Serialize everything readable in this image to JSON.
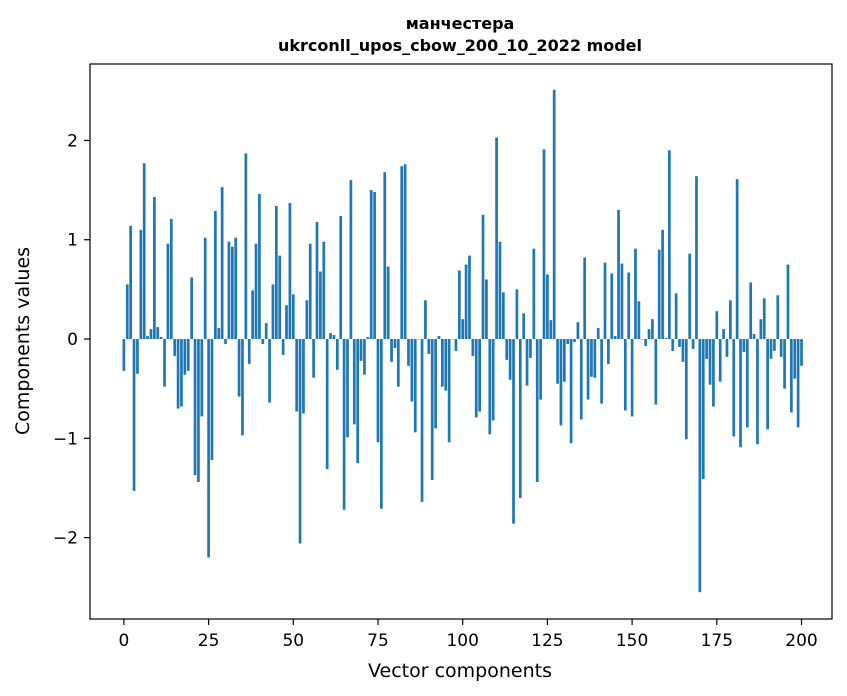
{
  "chart_data": {
    "type": "bar",
    "title": "манчестера",
    "subtitle": "ukrconll_upos_cbow_200_10_2022 model",
    "xlabel": "Vector components",
    "ylabel": "Components values",
    "xlim": [
      -10,
      209
    ],
    "ylim": [
      -2.82,
      2.77
    ],
    "xticks": [
      0,
      25,
      50,
      75,
      100,
      125,
      150,
      175,
      200
    ],
    "xtick_labels": [
      "0",
      "25",
      "50",
      "75",
      "100",
      "125",
      "150",
      "175",
      "200"
    ],
    "yticks": [
      -2,
      -1,
      0,
      1,
      2
    ],
    "ytick_labels": [
      "−2",
      "−1",
      "0",
      "1",
      "2"
    ],
    "bar_color": "#1f77b4",
    "grid": false,
    "legend": "none",
    "values": [
      -0.32,
      0.55,
      1.14,
      -1.53,
      -0.35,
      1.1,
      1.77,
      0.03,
      0.1,
      1.43,
      0.12,
      0.02,
      -0.48,
      0.96,
      1.21,
      -0.17,
      -0.7,
      -0.68,
      -0.36,
      -0.32,
      0.62,
      -1.37,
      -1.44,
      -0.78,
      1.02,
      -2.2,
      -1.22,
      1.29,
      0.11,
      1.53,
      -0.05,
      0.98,
      0.93,
      1.02,
      -0.58,
      -0.97,
      1.87,
      -0.25,
      0.49,
      0.96,
      1.46,
      -0.05,
      0.16,
      -0.64,
      0.55,
      1.34,
      0.84,
      -0.16,
      0.34,
      1.37,
      0.45,
      -0.73,
      -2.06,
      -0.75,
      0.39,
      0.96,
      -0.39,
      1.18,
      0.68,
      0.98,
      -1.31,
      0.06,
      0.04,
      -0.31,
      1.24,
      -1.72,
      -0.99,
      1.6,
      -0.86,
      -1.25,
      -0.22,
      -0.36,
      0.02,
      1.5,
      1.48,
      -1.04,
      -1.71,
      1.68,
      0.73,
      -0.23,
      -0.09,
      -0.48,
      1.74,
      1.76,
      -0.27,
      -0.63,
      -0.94,
      0.0,
      -1.64,
      0.39,
      -0.15,
      -1.42,
      -0.9,
      0.03,
      -0.48,
      -0.52,
      -1.04,
      0.0,
      -0.12,
      0.69,
      0.2,
      0.75,
      0.84,
      -0.17,
      -0.79,
      -0.73,
      1.25,
      0.6,
      -0.96,
      -0.82,
      2.03,
      0.98,
      0.47,
      -0.21,
      -0.41,
      -1.86,
      0.5,
      -1.6,
      0.26,
      -0.47,
      -0.19,
      0.91,
      -1.44,
      -0.61,
      1.91,
      0.65,
      0.19,
      2.51,
      -0.45,
      -0.87,
      -0.43,
      -0.05,
      -1.05,
      -0.03,
      0.17,
      -0.81,
      0.82,
      -0.61,
      -0.38,
      -0.39,
      0.11,
      -0.65,
      0.77,
      -0.25,
      0.66,
      0.03,
      1.3,
      0.76,
      -0.72,
      0.67,
      -0.78,
      0.91,
      0.38,
      0.0,
      -0.07,
      0.1,
      0.2,
      -0.66,
      0.9,
      1.1,
      0.01,
      1.9,
      -0.12,
      0.46,
      -0.08,
      -0.23,
      -1.01,
      0.86,
      -0.1,
      1.64,
      -2.55,
      -1.41,
      -0.2,
      -0.46,
      -0.68,
      0.28,
      -0.43,
      0.1,
      -0.18,
      0.39,
      -0.98,
      1.61,
      -1.09,
      -0.13,
      -0.89,
      0.57,
      0.05,
      -1.06,
      0.2,
      0.41,
      -0.91,
      -0.2,
      -0.12,
      0.44,
      -0.18,
      -0.5,
      0.75,
      -0.74,
      -0.4,
      -0.89,
      -0.27
    ]
  }
}
